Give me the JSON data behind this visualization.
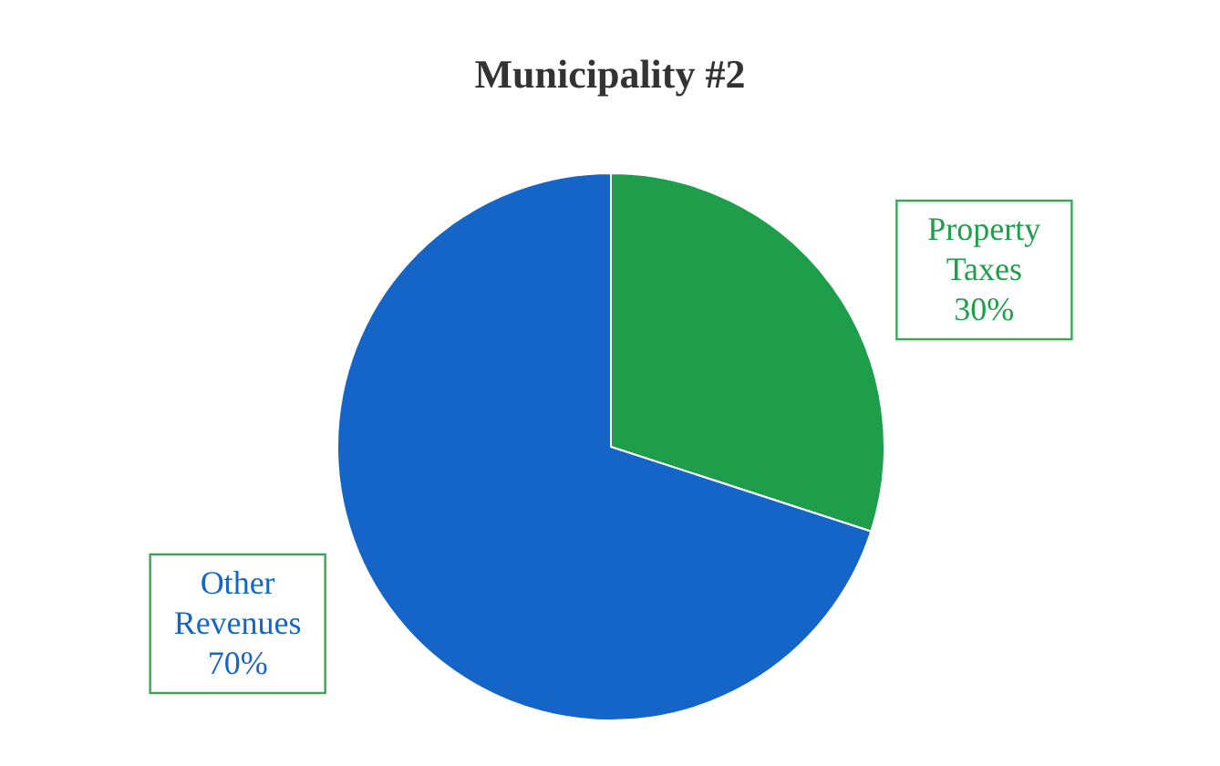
{
  "chart_data": {
    "type": "pie",
    "title": "Municipality #2",
    "categories": [
      "Property Taxes",
      "Other Revenues"
    ],
    "values": [
      30,
      70
    ],
    "colors": [
      "#1e9e4a",
      "#1565c8"
    ],
    "value_labels": [
      "30%",
      "70%"
    ]
  }
}
